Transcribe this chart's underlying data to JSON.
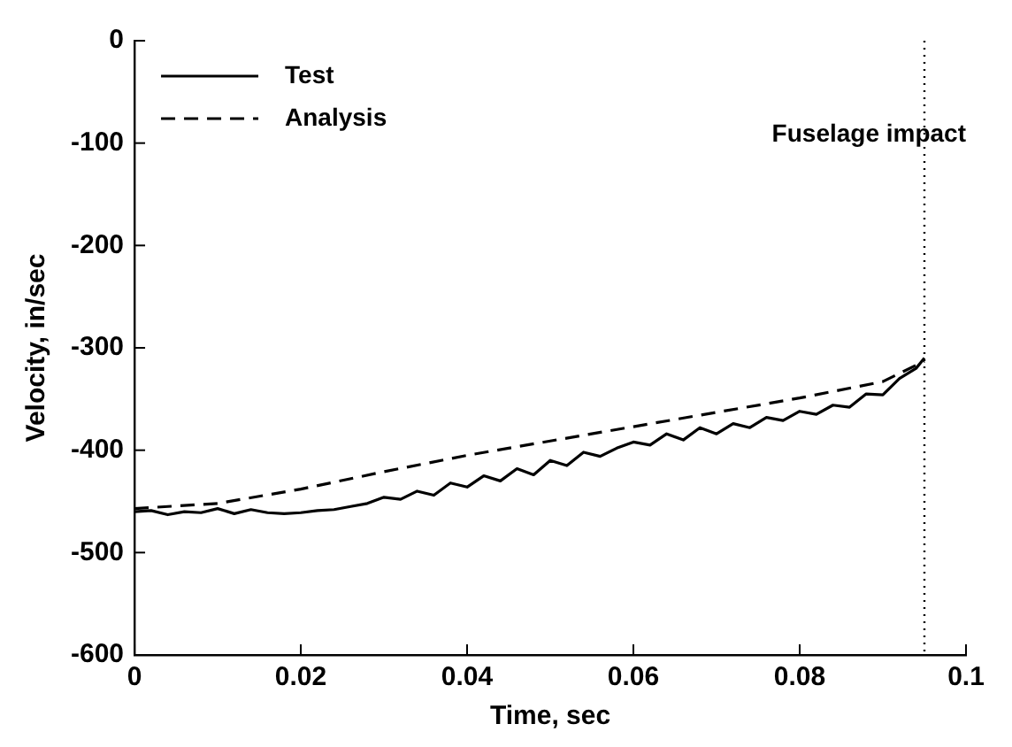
{
  "chart_data": {
    "type": "line",
    "xlabel": "Time, sec",
    "ylabel": "Velocity, in/sec",
    "xlim": [
      0,
      0.1
    ],
    "xticks": [
      0,
      0.02,
      0.04,
      0.06,
      0.08,
      0.1
    ],
    "ylim": [
      -600,
      0
    ],
    "yticks": [
      -600,
      -500,
      -400,
      -300,
      -200,
      -100,
      0
    ],
    "grid": false,
    "legend": "top left",
    "marker": "none",
    "series": [
      {
        "name": "Test",
        "color": "#000000",
        "line_style": "solid",
        "x": [
          0,
          0.002,
          0.004,
          0.006,
          0.008,
          0.01,
          0.012,
          0.014,
          0.016,
          0.018,
          0.02,
          0.022,
          0.024,
          0.026,
          0.028,
          0.03,
          0.032,
          0.034,
          0.036,
          0.038,
          0.04,
          0.042,
          0.044,
          0.046,
          0.048,
          0.05,
          0.052,
          0.054,
          0.056,
          0.058,
          0.06,
          0.062,
          0.064,
          0.066,
          0.068,
          0.07,
          0.072,
          0.074,
          0.076,
          0.078,
          0.08,
          0.082,
          0.084,
          0.086,
          0.088,
          0.09,
          0.092,
          0.094,
          0.095
        ],
        "values": [
          -460,
          -459,
          -463,
          -460,
          -461,
          -457,
          -462,
          -458,
          -461,
          -462,
          -461,
          -459,
          -458,
          -455,
          -452,
          -446,
          -448,
          -440,
          -444,
          -432,
          -436,
          -425,
          -430,
          -418,
          -424,
          -410,
          -415,
          -402,
          -406,
          -398,
          -392,
          -395,
          -384,
          -390,
          -378,
          -384,
          -374,
          -378,
          -368,
          -371,
          -362,
          -365,
          -356,
          -358,
          -345,
          -346,
          -330,
          -320,
          -310
        ]
      },
      {
        "name": "Analysis",
        "color": "#000000",
        "line_style": "dashed",
        "x": [
          0,
          0.01,
          0.02,
          0.03,
          0.04,
          0.05,
          0.06,
          0.07,
          0.08,
          0.09,
          0.095
        ],
        "values": [
          -457,
          -452,
          -438,
          -421,
          -405,
          -391,
          -377,
          -363,
          -349,
          -333,
          -313
        ]
      }
    ],
    "ref_lines": [
      {
        "axis": "x",
        "value": 0.095,
        "label": "Fuselage impact",
        "line_style": "dotted",
        "color": "#000000"
      }
    ]
  }
}
